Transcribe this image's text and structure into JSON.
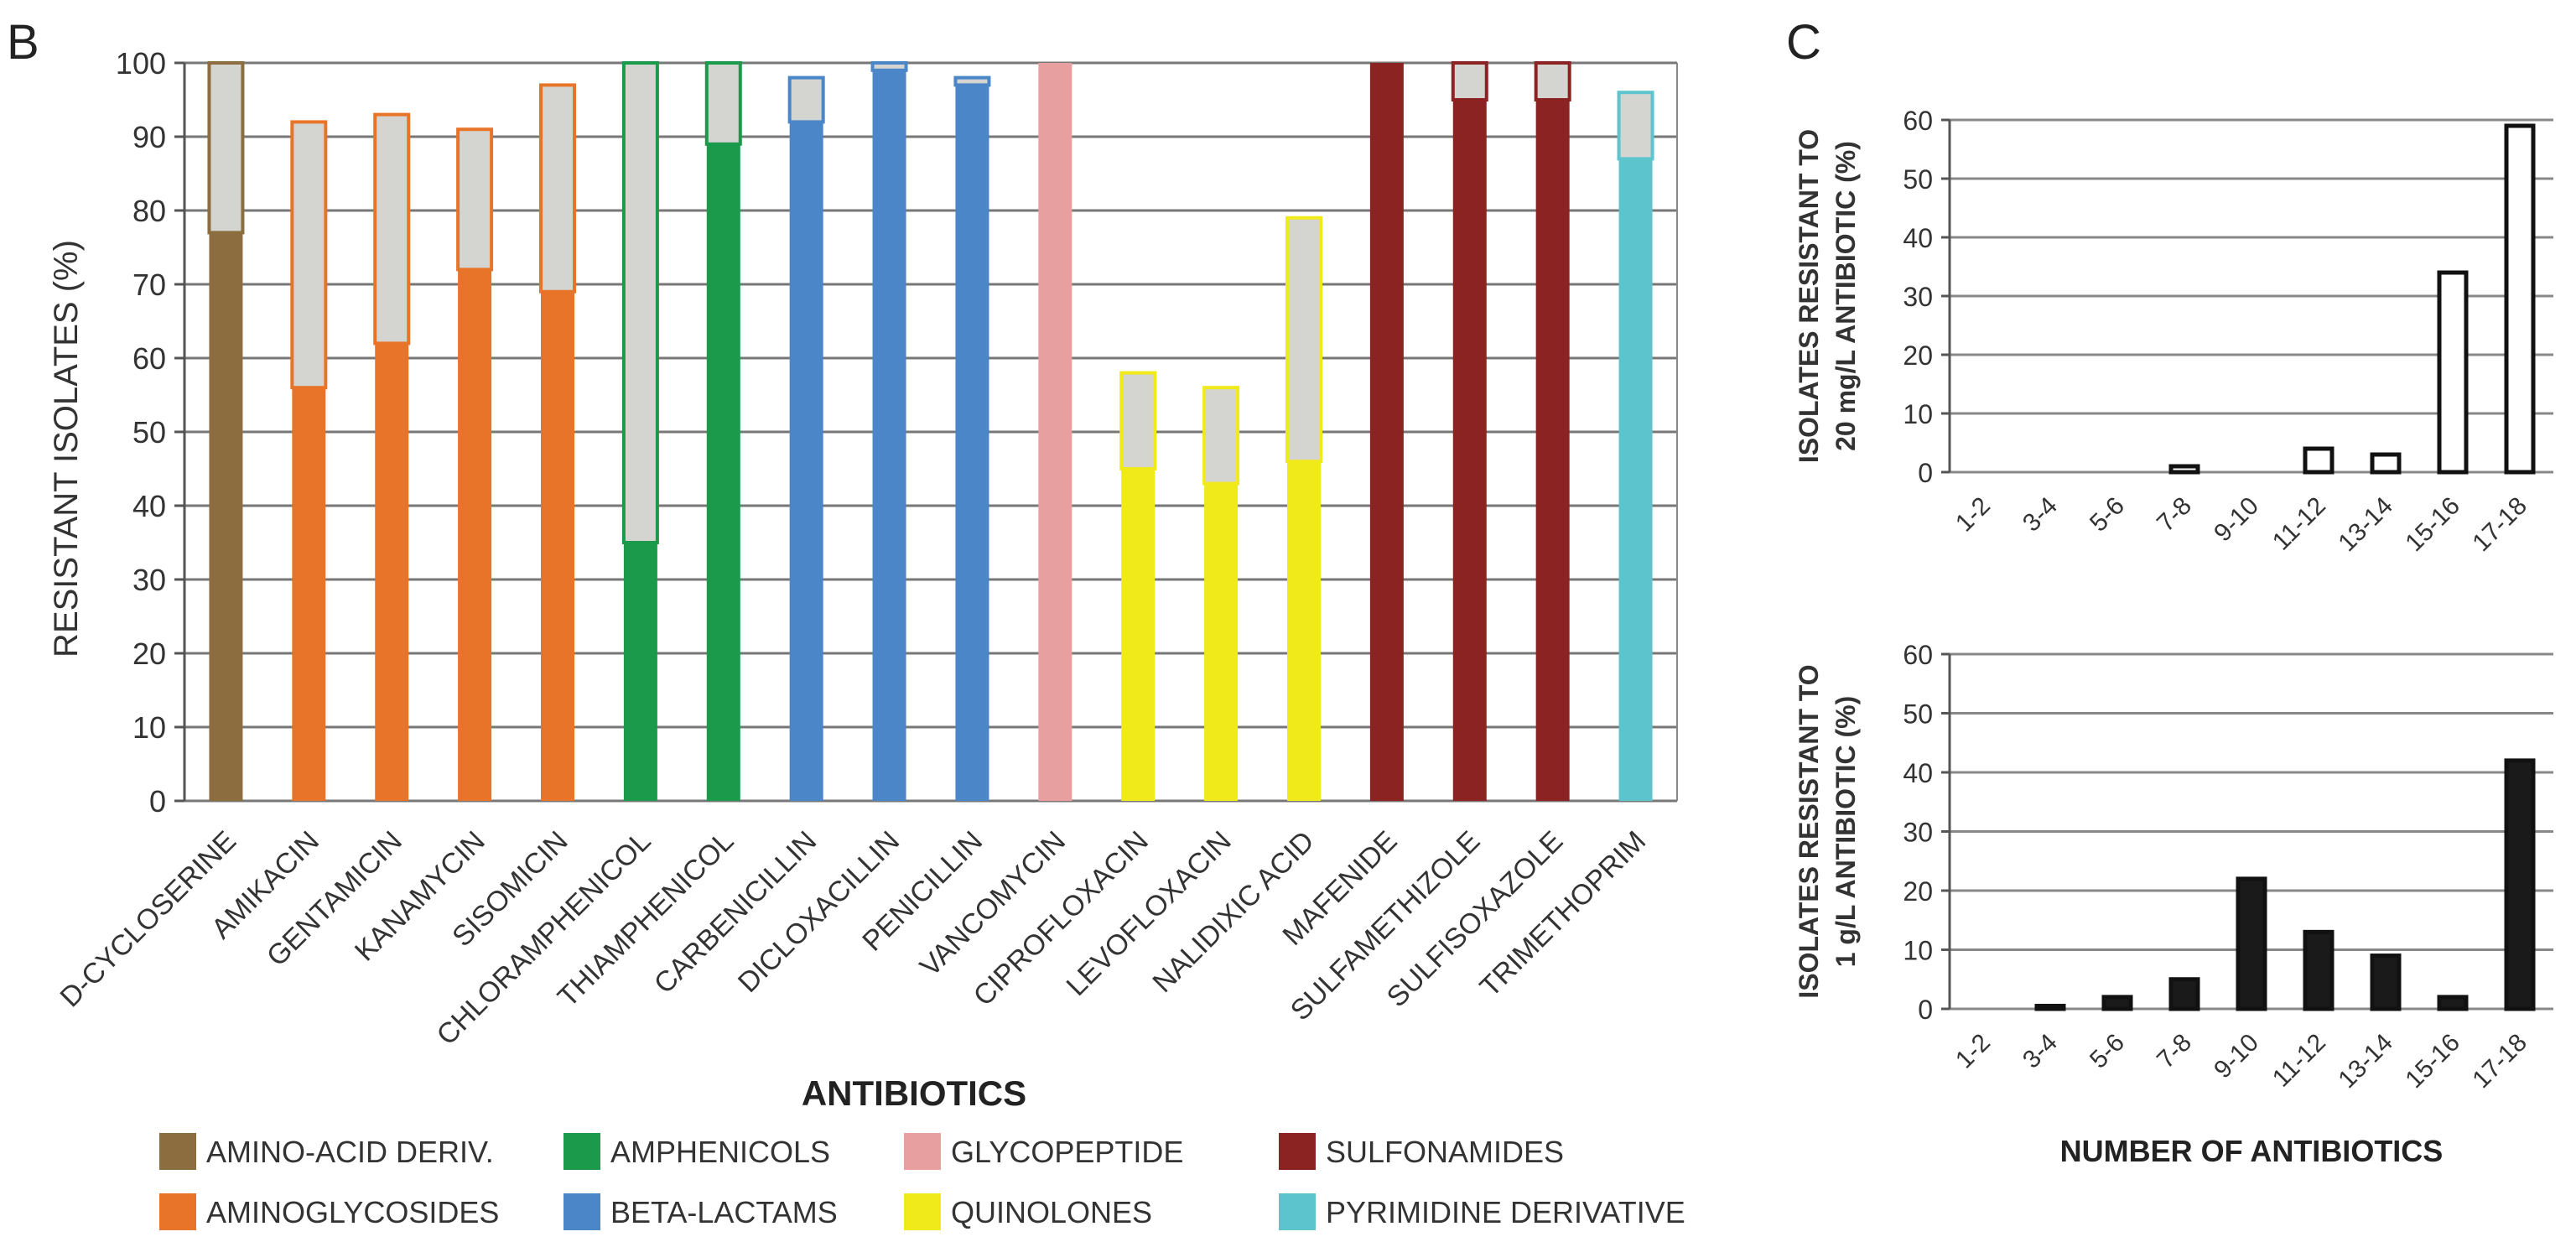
{
  "panel_labels": {
    "b": "B",
    "c": "C"
  },
  "chart_data": [
    {
      "panel": "B",
      "type": "bar",
      "stacked": true,
      "title": "",
      "xlabel": "ANTIBIOTICS",
      "ylabel": "RESISTANT ISOLATES (%)",
      "ylim": [
        0,
        100
      ],
      "yticks": [
        0,
        10,
        20,
        30,
        40,
        50,
        60,
        70,
        80,
        90,
        100
      ],
      "grid": true,
      "categories": [
        "D-CYCLOSERINE",
        "AMIKACIN",
        "GENTAMICIN",
        "KANAMYCIN",
        "SISOMICIN",
        "CHLORAMPHENICOL",
        "THIAMPHENICOL",
        "CARBENICILLIN",
        "DICLOXACILLIN",
        "PENICILLIN",
        "VANCOMYCIN",
        "CIPROFLOXACIN",
        "LEVOFLOXACIN",
        "NALIDIXIC ACID",
        "MAFENIDE",
        "SULFAMETHIZOLE",
        "SULFISOXAZOLE",
        "TRIMETHOPRIM"
      ],
      "groups": [
        0,
        1,
        1,
        1,
        1,
        2,
        2,
        3,
        3,
        3,
        4,
        5,
        5,
        5,
        6,
        6,
        6,
        7
      ],
      "series": [
        {
          "name": "resistant (colored)",
          "values": [
            77,
            56,
            62,
            72,
            69,
            35,
            89,
            92,
            99,
            97,
            100,
            45,
            43,
            46,
            100,
            95,
            95,
            87
          ]
        },
        {
          "name": "additional (grey)",
          "values": [
            23,
            36,
            31,
            19,
            28,
            65,
            11,
            6,
            1,
            1,
            0,
            13,
            13,
            33,
            0,
            5,
            5,
            9
          ]
        }
      ],
      "legend": {
        "placement": "bottom",
        "items": [
          {
            "label": "AMINO-ACID DERIV.",
            "color": "#8c6d3f"
          },
          {
            "label": "AMPHENICOLS",
            "color": "#1a9a4a"
          },
          {
            "label": "GLYCOPEPTIDE",
            "color": "#e89fa0"
          },
          {
            "label": "SULFONAMIDES",
            "color": "#8b2323"
          },
          {
            "label": "AMINOGLYCOSIDES",
            "color": "#e8742a"
          },
          {
            "label": "BETA-LACTAMS",
            "color": "#4a86c8"
          },
          {
            "label": "QUINOLONES",
            "color": "#f0ea1a"
          },
          {
            "label": "PYRIMIDINE DERIVATIVE",
            "color": "#5cc4cc"
          }
        ]
      },
      "grey_color": "#d4d4d0"
    },
    {
      "panel": "C-top",
      "type": "bar",
      "title": "",
      "xlabel": "",
      "ylabel": [
        "ISOLATES RESISTANT TO",
        "20 mg/L ANTIBIOTIC (%)"
      ],
      "ylim": [
        0,
        60
      ],
      "yticks": [
        0,
        10,
        20,
        30,
        40,
        50,
        60
      ],
      "grid": true,
      "categories": [
        "1-2",
        "3-4",
        "5-6",
        "7-8",
        "9-10",
        "11-12",
        "13-14",
        "15-16",
        "17-18"
      ],
      "values": [
        0,
        0,
        0,
        1,
        0,
        4,
        3,
        34,
        59
      ],
      "fill": "#ffffff"
    },
    {
      "panel": "C-bottom",
      "type": "bar",
      "title": "",
      "xlabel": "NUMBER OF ANTIBIOTICS",
      "ylabel": [
        "ISOLATES RESISTANT TO",
        "1 g/L ANTIBIOTIC (%)"
      ],
      "ylim": [
        0,
        60
      ],
      "yticks": [
        0,
        10,
        20,
        30,
        40,
        50,
        60
      ],
      "grid": true,
      "categories": [
        "1-2",
        "3-4",
        "5-6",
        "7-8",
        "9-10",
        "11-12",
        "13-14",
        "15-16",
        "17-18"
      ],
      "values": [
        0,
        0.5,
        2,
        5,
        22,
        13,
        9,
        2,
        42
      ],
      "fill": "#1a1a1a"
    }
  ]
}
